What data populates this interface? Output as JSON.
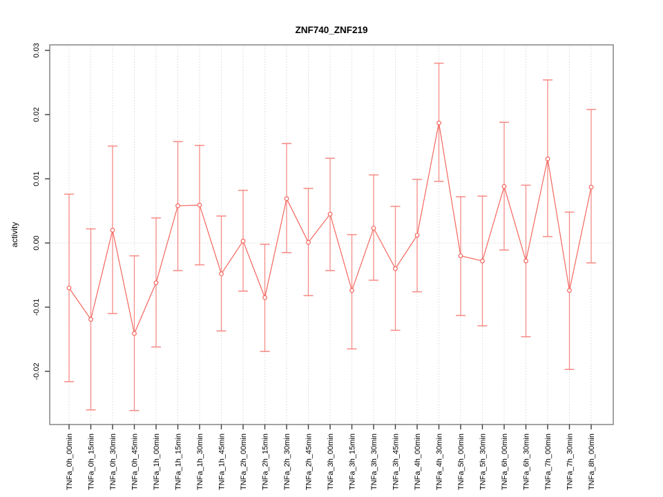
{
  "window": {
    "background": "#ffffff"
  },
  "chart_data": {
    "type": "line",
    "title": "ZNF740_ZNF219",
    "xlabel": "",
    "ylabel": "activity",
    "legend_position": "none",
    "grid": "vertical-dotted-per-category-plus-dotted-zero-line",
    "ylim": [
      -0.0285,
      0.031
    ],
    "yticks": [
      "0.03",
      "0.02",
      "0.01",
      "0.00",
      "-0.01",
      "-0.02"
    ],
    "ytick_values": [
      0.03,
      0.02,
      0.01,
      0.0,
      -0.01,
      -0.02
    ],
    "zero_line": 0.0,
    "categories": [
      "TNFa_0h_00min",
      "TNFa_0h_15min",
      "TNFa_0h_30min",
      "TNFa_0h_45min",
      "TNFa_1h_00min",
      "TNFa_1h_15min",
      "TNFa_1h_30min",
      "TNFa_1h_45min",
      "TNFa_2h_00min",
      "TNFa_2h_15min",
      "TNFa_2h_30min",
      "TNFa_2h_45min",
      "TNFa_3h_00min",
      "TNFa_3h_15min",
      "TNFa_3h_30min",
      "TNFa_3h_45min",
      "TNFa_4h_00min",
      "TNFa_4h_30min",
      "TNFa_5h_00min",
      "TNFa_5h_30min",
      "TNFa_6h_00min",
      "TNFa_6h_30min",
      "TNFa_7h_00min",
      "TNFa_7h_30min",
      "TNFa_8h_00min"
    ],
    "series": [
      {
        "name": "activity",
        "marker": "open-circle",
        "values": [
          -0.007,
          -0.0119,
          0.002,
          -0.0141,
          -0.0062,
          0.0058,
          0.0059,
          -0.0048,
          0.0003,
          -0.0085,
          0.0069,
          0.0001,
          0.0045,
          -0.0074,
          0.0023,
          -0.004,
          0.0012,
          0.0187,
          -0.002,
          -0.0028,
          0.0088,
          -0.0028,
          0.0131,
          -0.0074,
          0.0087
        ],
        "error_low": [
          -0.0216,
          -0.026,
          -0.011,
          -0.0261,
          -0.0162,
          -0.0043,
          -0.0034,
          -0.0137,
          -0.0075,
          -0.0169,
          -0.0015,
          -0.0082,
          -0.0043,
          -0.0165,
          -0.0058,
          -0.0136,
          -0.0076,
          0.0096,
          -0.0113,
          -0.0129,
          -0.0011,
          -0.0146,
          0.001,
          -0.0197,
          -0.0031
        ],
        "error_high": [
          0.0076,
          0.0022,
          0.0151,
          -0.002,
          0.0039,
          0.0158,
          0.0152,
          0.0042,
          0.0082,
          -0.0002,
          0.0155,
          0.0085,
          0.0132,
          0.0013,
          0.0106,
          0.0057,
          0.0099,
          0.028,
          0.0072,
          0.0073,
          0.0188,
          0.009,
          0.0254,
          0.0048,
          0.0208
        ]
      }
    ],
    "colors": {
      "series_line": "#f4655c",
      "error_bar": "#f4655c",
      "grid_line": "#d7d7d7",
      "frame": "#8c8c8c",
      "tick": "#3c3c3c",
      "text": "#000000"
    }
  }
}
